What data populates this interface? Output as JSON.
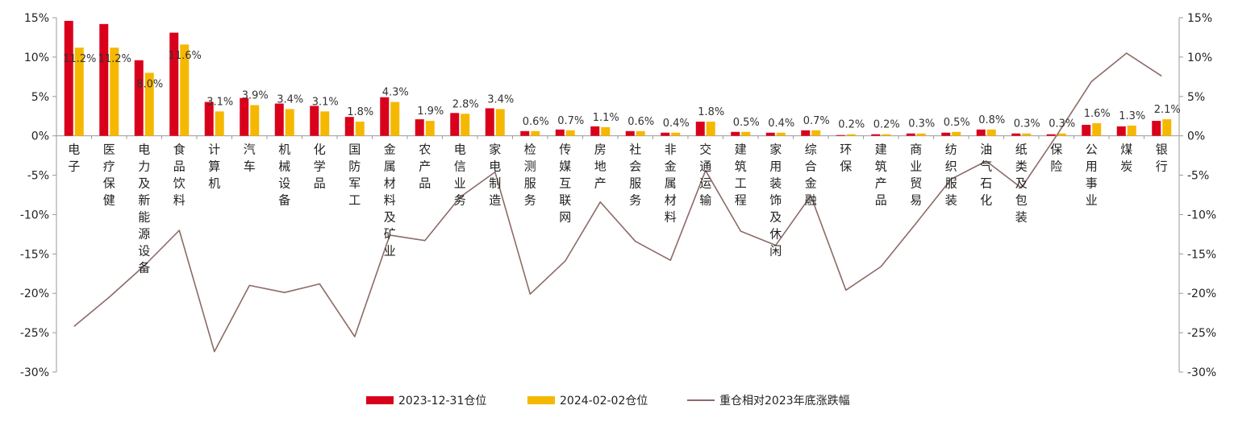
{
  "chart_data": {
    "type": "bar",
    "categories": [
      "电子",
      "医疗保健",
      "电力及新能源设备",
      "食品饮料",
      "计算机",
      "汽车",
      "机械设备",
      "化学品",
      "国防军工",
      "金属材料及矿业",
      "农产品",
      "电信业务",
      "家电制造",
      "检测服务",
      "传媒互联网",
      "房地产",
      "社会服务",
      "非金属材料",
      "交通运输",
      "建筑工程",
      "家用装饰及休闲",
      "综合金融",
      "环保",
      "建筑产品",
      "商业贸易",
      "纺织服装",
      "油气石化",
      "纸类及包装",
      "保险",
      "公用事业",
      "煤炭",
      "银行"
    ],
    "series": [
      {
        "name": "2023-12-31仓位",
        "type": "bar",
        "axis": "left",
        "color": "#d9001b",
        "values": [
          14.6,
          14.2,
          9.6,
          13.1,
          4.3,
          4.8,
          4.1,
          3.8,
          2.4,
          4.9,
          2.1,
          2.9,
          3.5,
          0.6,
          0.8,
          1.2,
          0.6,
          0.4,
          1.8,
          0.5,
          0.4,
          0.7,
          0.1,
          0.2,
          0.3,
          0.4,
          0.8,
          0.3,
          0.2,
          1.4,
          1.2,
          1.9
        ]
      },
      {
        "name": "2024-02-02仓位",
        "type": "bar",
        "axis": "left",
        "color": "#f5b800",
        "values": [
          11.2,
          11.2,
          8.0,
          11.6,
          3.1,
          3.9,
          3.4,
          3.1,
          1.8,
          4.3,
          1.9,
          2.8,
          3.4,
          0.6,
          0.7,
          1.1,
          0.6,
          0.4,
          1.8,
          0.5,
          0.4,
          0.7,
          0.2,
          0.2,
          0.3,
          0.5,
          0.8,
          0.3,
          0.3,
          1.6,
          1.3,
          2.1
        ],
        "labels": [
          "11.2%",
          "11.2%",
          "8.0%",
          "11.6%",
          "3.1%",
          "3.9%",
          "3.4%",
          "3.1%",
          "1.8%",
          "4.3%",
          "1.9%",
          "2.8%",
          "3.4%",
          "0.6%",
          "0.7%",
          "1.1%",
          "0.6%",
          "0.4%",
          "1.8%",
          "0.5%",
          "0.4%",
          "0.7%",
          "0.2%",
          "0.2%",
          "0.3%",
          "0.5%",
          "0.8%",
          "0.3%",
          "0.3%",
          "1.6%",
          "1.3%",
          "2.1%"
        ]
      },
      {
        "name": "重仓相对2023年底涨跌幅",
        "type": "line",
        "axis": "right",
        "color": "#8b6b66",
        "values": [
          -24.2,
          -20.5,
          -16.5,
          -12.0,
          -27.4,
          -19.0,
          -19.9,
          -18.8,
          -25.5,
          -12.6,
          -13.3,
          -7.8,
          -4.6,
          -20.1,
          -15.9,
          -8.4,
          -13.4,
          -15.8,
          -4.4,
          -12.1,
          -13.9,
          -7.6,
          -19.6,
          -16.6,
          -11.1,
          -5.5,
          -3.2,
          -6.6,
          0.0,
          6.9,
          10.5,
          7.6
        ]
      }
    ],
    "ylim_left": [
      -30,
      15
    ],
    "ylim_right": [
      -30,
      15
    ],
    "yticks": [
      15,
      10,
      5,
      0,
      -5,
      -10,
      -15,
      -20,
      -25,
      -30
    ],
    "ytick_labels": [
      "15%",
      "10%",
      "5%",
      "0%",
      "-5%",
      "-10%",
      "-15%",
      "-20%",
      "-25%",
      "-30%"
    ],
    "legend_position": "bottom",
    "grid": false
  }
}
